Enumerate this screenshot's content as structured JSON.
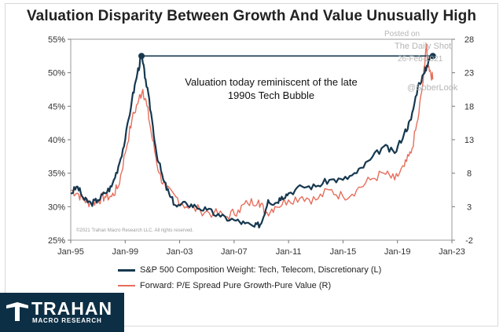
{
  "chart_data": {
    "type": "line",
    "title": "Valuation Disparity Between Growth And Value Unusually High",
    "x_tick_labels": [
      "Jan-95",
      "Jan-99",
      "Jan-03",
      "Jan-07",
      "Jan-11",
      "Jan-15",
      "Jan-19",
      "Jan-23"
    ],
    "x_range": [
      "1995-01",
      "2023-01"
    ],
    "y_left_ticks": [
      "25%",
      "30%",
      "35%",
      "40%",
      "45%",
      "50%",
      "55%"
    ],
    "y_left_range": [
      25,
      55
    ],
    "y_right_ticks": [
      "-2",
      "3",
      "8",
      "13",
      "18",
      "23",
      "28"
    ],
    "y_right_range": [
      -2,
      28
    ],
    "grid": false,
    "legend_position": "bottom",
    "series": [
      {
        "name": "S&P 500 Composition Weight: Tech, Telecom, Discretionary (L)",
        "axis": "left",
        "color": "#16384f",
        "points": [
          [
            1995.0,
            32.0
          ],
          [
            1995.5,
            33.0
          ],
          [
            1996.0,
            31.0
          ],
          [
            1996.5,
            30.5
          ],
          [
            1997.0,
            31.0
          ],
          [
            1997.5,
            32.0
          ],
          [
            1998.0,
            33.0
          ],
          [
            1998.5,
            36.0
          ],
          [
            1999.0,
            40.0
          ],
          [
            1999.5,
            46.0
          ],
          [
            1999.9,
            50.0
          ],
          [
            2000.2,
            52.5
          ],
          [
            2000.5,
            49.0
          ],
          [
            2000.9,
            44.0
          ],
          [
            2001.3,
            38.0
          ],
          [
            2001.8,
            34.0
          ],
          [
            2002.3,
            31.5
          ],
          [
            2002.8,
            30.0
          ],
          [
            2003.5,
            30.5
          ],
          [
            2004.2,
            30.0
          ],
          [
            2005.0,
            29.5
          ],
          [
            2006.0,
            28.5
          ],
          [
            2007.0,
            28.0
          ],
          [
            2007.8,
            27.5
          ],
          [
            2008.5,
            27.0
          ],
          [
            2009.0,
            27.5
          ],
          [
            2009.5,
            31.0
          ],
          [
            2010.0,
            30.5
          ],
          [
            2010.5,
            31.5
          ],
          [
            2011.0,
            32.0
          ],
          [
            2012.0,
            33.0
          ],
          [
            2013.0,
            33.0
          ],
          [
            2014.0,
            34.0
          ],
          [
            2015.0,
            34.0
          ],
          [
            2016.0,
            35.0
          ],
          [
            2017.0,
            37.0
          ],
          [
            2018.0,
            39.0
          ],
          [
            2018.8,
            38.0
          ],
          [
            2019.5,
            41.0
          ],
          [
            2020.0,
            43.0
          ],
          [
            2020.5,
            48.0
          ],
          [
            2021.0,
            50.0
          ],
          [
            2021.3,
            52.0
          ],
          [
            2021.6,
            52.5
          ]
        ]
      },
      {
        "name": "Forward: P/E Spread Pure Growth-Pure Value (R)",
        "axis": "right",
        "color": "#e76e5c",
        "points": [
          [
            1995.0,
            5.5
          ],
          [
            1995.5,
            5.0
          ],
          [
            1996.0,
            4.0
          ],
          [
            1996.5,
            3.5
          ],
          [
            1997.0,
            4.0
          ],
          [
            1997.5,
            4.5
          ],
          [
            1998.0,
            4.5
          ],
          [
            1998.5,
            6.0
          ],
          [
            1999.0,
            11.0
          ],
          [
            1999.5,
            16.0
          ],
          [
            2000.0,
            19.0
          ],
          [
            2000.3,
            20.5
          ],
          [
            2000.6,
            18.0
          ],
          [
            2001.0,
            13.0
          ],
          [
            2001.5,
            8.0
          ],
          [
            2002.0,
            5.5
          ],
          [
            2002.7,
            4.5
          ],
          [
            2003.5,
            3.0
          ],
          [
            2004.5,
            2.5
          ],
          [
            2005.5,
            2.0
          ],
          [
            2006.5,
            1.5
          ],
          [
            2007.3,
            2.5
          ],
          [
            2008.0,
            3.5
          ],
          [
            2008.8,
            4.0
          ],
          [
            2009.3,
            2.0
          ],
          [
            2010.0,
            3.0
          ],
          [
            2011.0,
            4.0
          ],
          [
            2012.0,
            4.5
          ],
          [
            2013.0,
            4.0
          ],
          [
            2014.0,
            5.5
          ],
          [
            2015.0,
            4.5
          ],
          [
            2016.0,
            5.5
          ],
          [
            2017.0,
            7.0
          ],
          [
            2018.0,
            8.0
          ],
          [
            2018.8,
            7.0
          ],
          [
            2019.5,
            9.0
          ],
          [
            2020.0,
            11.0
          ],
          [
            2020.5,
            16.0
          ],
          [
            2020.9,
            22.0
          ],
          [
            2021.1,
            27.0
          ],
          [
            2021.3,
            24.0
          ],
          [
            2021.6,
            22.0
          ]
        ]
      }
    ],
    "annotation": {
      "lines": [
        "Valuation today reminiscent of the late",
        "1990s Tech Bubble"
      ],
      "level_left": 52.5,
      "from_x": 2000.2,
      "to_x": 2021.6
    },
    "copyright": "©2021 Trahan Macro Research LLC. All rights reserved."
  },
  "watermark": {
    "line1": "Posted on",
    "line2": "The Daily Shot",
    "line3": "26-Feb-2021",
    "line4": "@SoberLook"
  },
  "brand": {
    "name": "TRAHAN",
    "subtitle": "MACRO RESEARCH",
    "bar_color": "#0d2f45"
  }
}
